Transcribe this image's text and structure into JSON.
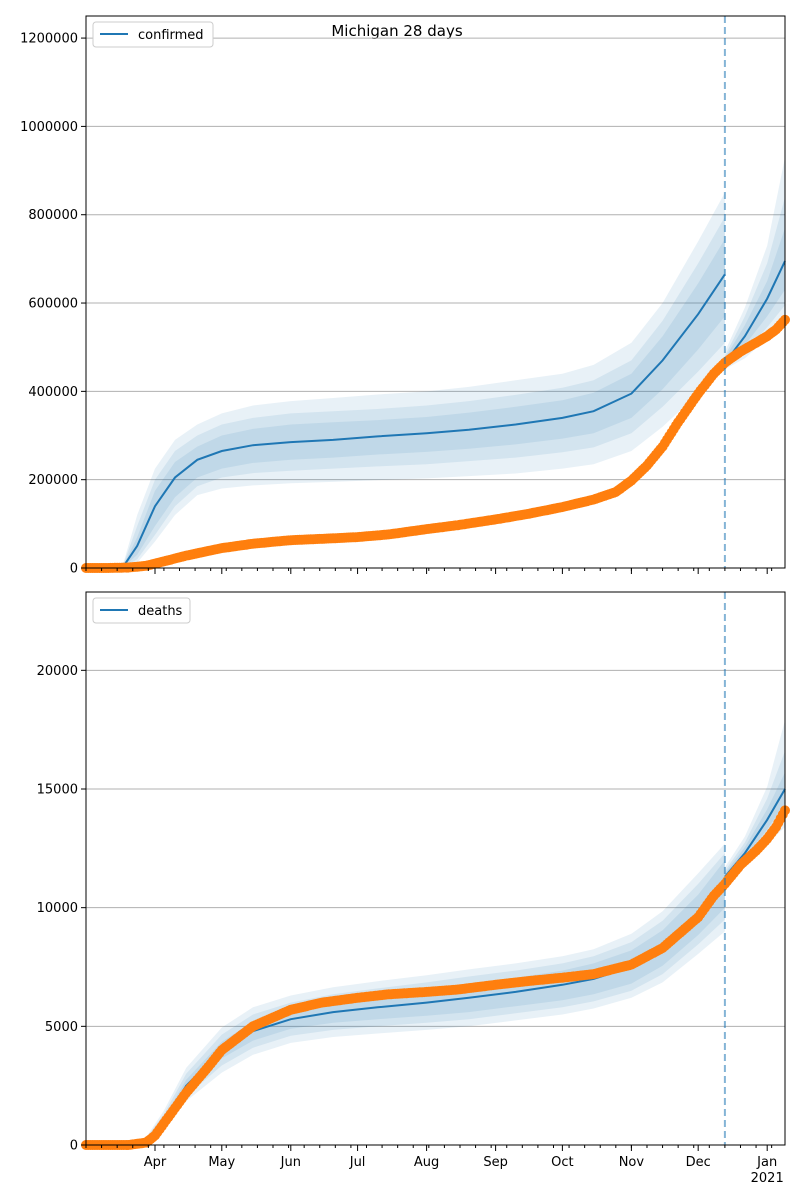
{
  "figure": {
    "title": "Michigan 28 days"
  },
  "chart_data": [
    {
      "type": "line",
      "legend": {
        "placement": "top-left",
        "entries": [
          "confirmed"
        ]
      },
      "xlim": [
        "2020-03-01",
        "2021-01-09"
      ],
      "ylim": [
        0,
        1250000
      ],
      "yticks": [
        0,
        200000,
        400000,
        600000,
        800000,
        1000000,
        1200000
      ],
      "ytick_labels": [
        "0",
        "200000",
        "400000",
        "600000",
        "800000",
        "1000000",
        "1200000"
      ],
      "grid": "horizontal",
      "forecast_start": "2020-12-13",
      "model_median": {
        "name": "confirmed",
        "x": [
          "2020-03-01",
          "2020-03-10",
          "2020-03-18",
          "2020-03-24",
          "2020-04-01",
          "2020-04-10",
          "2020-04-20",
          "2020-05-01",
          "2020-05-15",
          "2020-06-01",
          "2020-06-20",
          "2020-07-10",
          "2020-08-01",
          "2020-08-20",
          "2020-09-10",
          "2020-10-01",
          "2020-10-15",
          "2020-11-01",
          "2020-11-15",
          "2020-12-01",
          "2020-12-13"
        ],
        "values": [
          0,
          0,
          5000,
          50000,
          140000,
          205000,
          245000,
          265000,
          278000,
          285000,
          290000,
          298000,
          305000,
          313000,
          325000,
          340000,
          355000,
          395000,
          470000,
          575000,
          665000
        ],
        "band_inner": {
          "lower": [
            0,
            0,
            3000,
            30000,
            95000,
            160000,
            205000,
            225000,
            238000,
            245000,
            250000,
            257000,
            263000,
            270000,
            280000,
            293000,
            305000,
            340000,
            405000,
            495000,
            570000
          ],
          "upper": [
            0,
            0,
            8000,
            70000,
            175000,
            240000,
            275000,
            300000,
            315000,
            325000,
            330000,
            335000,
            342000,
            352000,
            365000,
            380000,
            397000,
            440000,
            525000,
            645000,
            745000
          ]
        },
        "band_mid": {
          "lower": [
            0,
            0,
            2000,
            20000,
            75000,
            140000,
            185000,
            205000,
            215000,
            220000,
            225000,
            230000,
            235000,
            242000,
            250000,
            262000,
            273000,
            305000,
            365000,
            445000,
            510000
          ],
          "upper": [
            0,
            0,
            11000,
            95000,
            200000,
            265000,
            300000,
            325000,
            340000,
            350000,
            355000,
            360000,
            368000,
            378000,
            392000,
            408000,
            425000,
            470000,
            560000,
            690000,
            795000
          ]
        },
        "band_outer": {
          "lower": [
            0,
            0,
            1000,
            12000,
            60000,
            120000,
            165000,
            180000,
            187000,
            192000,
            195000,
            199000,
            203000,
            208000,
            214000,
            225000,
            235000,
            265000,
            320000,
            395000,
            455000
          ],
          "upper": [
            0,
            0,
            14000,
            120000,
            225000,
            290000,
            325000,
            350000,
            368000,
            378000,
            385000,
            393000,
            400000,
            410000,
            425000,
            440000,
            460000,
            510000,
            600000,
            740000,
            850000
          ]
        }
      },
      "forecast": {
        "x": [
          "2020-12-13",
          "2020-12-22",
          "2021-01-01",
          "2021-01-09"
        ],
        "values": [
          465000,
          525000,
          610000,
          695000
        ],
        "band_inner": {
          "lower": [
            460000,
            505000,
            570000,
            630000
          ],
          "upper": [
            475000,
            550000,
            650000,
            770000
          ]
        },
        "band_mid": {
          "lower": [
            455000,
            490000,
            545000,
            595000
          ],
          "upper": [
            480000,
            570000,
            690000,
            840000
          ]
        },
        "band_outer": {
          "lower": [
            450000,
            475000,
            520000,
            560000
          ],
          "upper": [
            490000,
            590000,
            730000,
            930000
          ]
        }
      },
      "observed": {
        "x": [
          "2020-03-01",
          "2020-03-10",
          "2020-03-20",
          "2020-03-28",
          "2020-04-05",
          "2020-04-15",
          "2020-05-01",
          "2020-05-15",
          "2020-06-01",
          "2020-06-15",
          "2020-07-01",
          "2020-07-15",
          "2020-08-01",
          "2020-08-15",
          "2020-09-01",
          "2020-09-15",
          "2020-10-01",
          "2020-10-15",
          "2020-10-25",
          "2020-11-01",
          "2020-11-08",
          "2020-11-15",
          "2020-11-22",
          "2020-12-01",
          "2020-12-08",
          "2020-12-13",
          "2020-12-20",
          "2020-12-27",
          "2021-01-01",
          "2021-01-05",
          "2021-01-09"
        ],
        "values": [
          0,
          0,
          1000,
          5000,
          15000,
          28000,
          45000,
          55000,
          63000,
          66000,
          70000,
          76000,
          88000,
          97000,
          110000,
          122000,
          138000,
          155000,
          172000,
          198000,
          232000,
          275000,
          330000,
          395000,
          440000,
          465000,
          490000,
          510000,
          525000,
          540000,
          562000
        ]
      }
    },
    {
      "type": "line",
      "legend": {
        "placement": "top-left",
        "entries": [
          "deaths"
        ]
      },
      "xlim": [
        "2020-03-01",
        "2021-01-09"
      ],
      "ylim": [
        0,
        23300
      ],
      "yticks": [
        0,
        5000,
        10000,
        15000,
        20000
      ],
      "ytick_labels": [
        "0",
        "5000",
        "10000",
        "15000",
        "20000"
      ],
      "grid": "horizontal",
      "forecast_start": "2020-12-13",
      "x_ticks": [
        {
          "date": "2020-04-01",
          "label": "Apr"
        },
        {
          "date": "2020-05-01",
          "label": "May"
        },
        {
          "date": "2020-06-01",
          "label": "Jun"
        },
        {
          "date": "2020-07-01",
          "label": "Jul"
        },
        {
          "date": "2020-08-01",
          "label": "Aug"
        },
        {
          "date": "2020-09-01",
          "label": "Sep"
        },
        {
          "date": "2020-10-01",
          "label": "Oct"
        },
        {
          "date": "2020-11-01",
          "label": "Nov"
        },
        {
          "date": "2020-12-01",
          "label": "Dec"
        },
        {
          "date": "2021-01-01",
          "label": "Jan",
          "sublabel": "2021"
        }
      ],
      "model_median": {
        "name": "deaths",
        "x": [
          "2020-03-01",
          "2020-03-20",
          "2020-03-28",
          "2020-04-05",
          "2020-04-15",
          "2020-05-01",
          "2020-05-15",
          "2020-06-01",
          "2020-06-20",
          "2020-07-10",
          "2020-08-01",
          "2020-08-20",
          "2020-09-10",
          "2020-10-01",
          "2020-10-15",
          "2020-11-01",
          "2020-11-15",
          "2020-12-01",
          "2020-12-13"
        ],
        "values": [
          0,
          0,
          200,
          1000,
          2500,
          4000,
          4800,
          5300,
          5600,
          5800,
          6000,
          6200,
          6450,
          6750,
          7000,
          7500,
          8300,
          9700,
          11000
        ],
        "band_inner": {
          "lower": [
            0,
            0,
            150,
            850,
            2250,
            3650,
            4400,
            4900,
            5150,
            5300,
            5450,
            5600,
            5850,
            6100,
            6350,
            6800,
            7550,
            8850,
            10000
          ],
          "upper": [
            0,
            0,
            250,
            1150,
            2750,
            4350,
            5200,
            5700,
            6050,
            6300,
            6550,
            6800,
            7050,
            7350,
            7650,
            8200,
            9050,
            10550,
            12000
          ]
        },
        "band_mid": {
          "lower": [
            0,
            0,
            120,
            750,
            2050,
            3350,
            4100,
            4600,
            4850,
            5000,
            5150,
            5300,
            5550,
            5800,
            6050,
            6500,
            7200,
            8450,
            9500
          ],
          "upper": [
            0,
            0,
            290,
            1300,
            3000,
            4650,
            5500,
            6000,
            6350,
            6600,
            6850,
            7100,
            7350,
            7650,
            7950,
            8550,
            9450,
            11000,
            12300
          ]
        },
        "band_outer": {
          "lower": [
            0,
            0,
            100,
            650,
            1850,
            3050,
            3800,
            4300,
            4550,
            4700,
            4850,
            5000,
            5250,
            5500,
            5750,
            6200,
            6850,
            8050,
            9000
          ],
          "upper": [
            0,
            0,
            320,
            1450,
            3250,
            4950,
            5800,
            6300,
            6650,
            6900,
            7150,
            7400,
            7650,
            7950,
            8250,
            8900,
            9850,
            11450,
            12700
          ]
        }
      },
      "forecast": {
        "x": [
          "2020-12-13",
          "2020-12-22",
          "2021-01-01",
          "2021-01-09"
        ],
        "values": [
          11300,
          12300,
          13700,
          15000
        ],
        "band_inner": {
          "lower": [
            11200,
            12100,
            13300,
            14400
          ],
          "upper": [
            11450,
            12550,
            14150,
            15700
          ]
        },
        "band_mid": {
          "lower": [
            11100,
            11950,
            13000,
            13900
          ],
          "upper": [
            11550,
            12750,
            14600,
            16600
          ]
        },
        "band_outer": {
          "lower": [
            11000,
            11800,
            12700,
            13400
          ],
          "upper": [
            11700,
            13000,
            15100,
            17900
          ]
        }
      },
      "observed": {
        "x": [
          "2020-03-01",
          "2020-03-20",
          "2020-03-28",
          "2020-04-01",
          "2020-04-08",
          "2020-04-15",
          "2020-04-25",
          "2020-05-01",
          "2020-05-15",
          "2020-06-01",
          "2020-06-15",
          "2020-07-01",
          "2020-07-15",
          "2020-08-01",
          "2020-08-15",
          "2020-09-01",
          "2020-09-15",
          "2020-10-01",
          "2020-10-15",
          "2020-11-01",
          "2020-11-15",
          "2020-12-01",
          "2020-12-08",
          "2020-12-13",
          "2020-12-20",
          "2020-12-27",
          "2021-01-01",
          "2021-01-05",
          "2021-01-09"
        ],
        "values": [
          0,
          0,
          100,
          400,
          1300,
          2200,
          3300,
          4000,
          5000,
          5700,
          6000,
          6200,
          6350,
          6450,
          6550,
          6750,
          6900,
          7050,
          7200,
          7600,
          8300,
          9600,
          10500,
          11000,
          11800,
          12400,
          12900,
          13400,
          14100
        ]
      }
    }
  ]
}
